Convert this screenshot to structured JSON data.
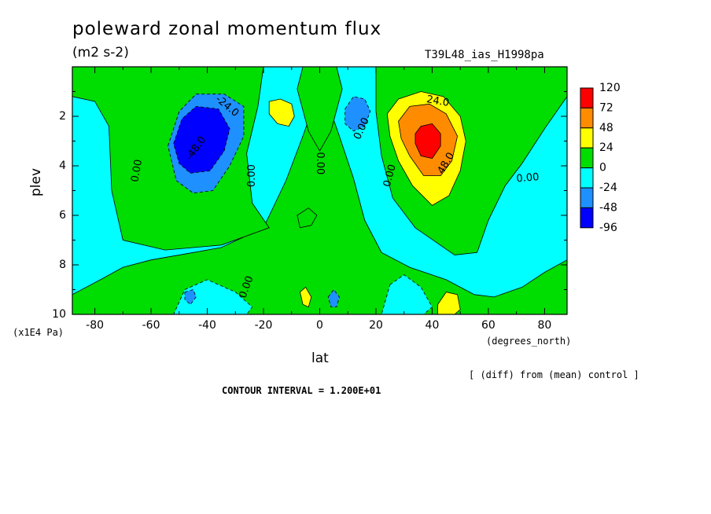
{
  "chart_data": {
    "type": "heatmap",
    "title": "poleward zonal momentum flux",
    "subtitle": "(m2 s-2)",
    "run_label": "T39L48_ias_H1998pa",
    "xlabel": "lat",
    "x_unit_label": "(degrees_north)",
    "ylabel": "plev",
    "y_unit_label": "(x1E4 Pa)",
    "footer_note": "[ (diff) from (mean) control ]",
    "contour_interval_text": "CONTOUR INTERVAL = 1.200E+01",
    "xlim": [
      -88,
      88
    ],
    "ylim": [
      10,
      0
    ],
    "x_ticks": [
      -80,
      -60,
      -40,
      -20,
      0,
      20,
      40,
      60,
      80
    ],
    "x_tick_labels": [
      "-80",
      "-60",
      "-40",
      "-20",
      "0",
      "20",
      "40",
      "60",
      "80"
    ],
    "y_ticks": [
      2,
      4,
      6,
      8,
      10
    ],
    "y_tick_labels": [
      "2",
      "4",
      "6",
      "8",
      "10"
    ],
    "legend": {
      "placement": "right",
      "labels": [
        "120",
        "72",
        "48",
        "24",
        "0",
        "-24",
        "-48",
        "-96"
      ],
      "colors": [
        "#ff0000",
        "#ff8c00",
        "#ffff00",
        "#00dd00",
        "#00ffff",
        "#1e90ff",
        "#0000ff"
      ]
    },
    "regions": [
      {
        "name": "green-lowlevel-tropics",
        "level": "0 to 24",
        "color": "#00dd00",
        "pts": [
          [
            -88,
            10
          ],
          [
            -88,
            9.2
          ],
          [
            -78,
            8.6
          ],
          [
            -70,
            8.1
          ],
          [
            -60,
            7.8
          ],
          [
            -45,
            7.5
          ],
          [
            -35,
            7.3
          ],
          [
            -20,
            6.5
          ],
          [
            -12,
            4.6
          ],
          [
            -6,
            2.8
          ],
          [
            -2,
            1.5
          ],
          [
            0,
            0.8
          ],
          [
            3,
            1.5
          ],
          [
            7,
            2.8
          ],
          [
            12,
            4.5
          ],
          [
            16,
            6.2
          ],
          [
            22,
            7.5
          ],
          [
            32,
            8.1
          ],
          [
            45,
            8.6
          ],
          [
            55,
            9.2
          ],
          [
            62,
            9.3
          ],
          [
            72,
            8.9
          ],
          [
            80,
            8.3
          ],
          [
            88,
            7.8
          ],
          [
            88,
            10
          ]
        ]
      },
      {
        "name": "green-upper-south",
        "level": "0 to 24",
        "color": "#00dd00",
        "pts": [
          [
            -88,
            0
          ],
          [
            -20,
            0
          ],
          [
            -22,
            1.6
          ],
          [
            -26,
            3.5
          ],
          [
            -24,
            5.5
          ],
          [
            -18,
            6.5
          ],
          [
            -35,
            7.2
          ],
          [
            -55,
            7.4
          ],
          [
            -70,
            7.0
          ],
          [
            -74,
            5.0
          ],
          [
            -75,
            2.4
          ],
          [
            -80,
            1.4
          ],
          [
            -88,
            1.2
          ]
        ]
      },
      {
        "name": "green-upper-north",
        "level": "0 to 24",
        "color": "#00dd00",
        "pts": [
          [
            20,
            0
          ],
          [
            88,
            0
          ],
          [
            88,
            1.2
          ],
          [
            80,
            2.5
          ],
          [
            72,
            3.9
          ],
          [
            66,
            4.8
          ],
          [
            60,
            6.2
          ],
          [
            56,
            7.5
          ],
          [
            48,
            7.6
          ],
          [
            34,
            6.5
          ],
          [
            26,
            5.3
          ],
          [
            22,
            3.6
          ],
          [
            20,
            1.8
          ]
        ]
      },
      {
        "name": "green-equator-upper",
        "level": "0 to 24",
        "color": "#00dd00",
        "pts": [
          [
            -6,
            0
          ],
          [
            6,
            0
          ],
          [
            8,
            0.9
          ],
          [
            4,
            2.6
          ],
          [
            0,
            3.4
          ],
          [
            -4,
            2.6
          ],
          [
            -8,
            0.9
          ]
        ]
      },
      {
        "name": "cyan-lower-south",
        "level": "-24 to 0",
        "color": "#00ffff",
        "pts": [
          [
            -48,
            9.0
          ],
          [
            -40,
            8.6
          ],
          [
            -30,
            9.1
          ],
          [
            -24,
            9.7
          ],
          [
            -26,
            10
          ],
          [
            -52,
            10
          ]
        ]
      },
      {
        "name": "cyan-lower-north",
        "level": "-24 to 0",
        "color": "#00ffff",
        "pts": [
          [
            25,
            8.8
          ],
          [
            30,
            8.4
          ],
          [
            36,
            8.9
          ],
          [
            40,
            9.7
          ],
          [
            37,
            10
          ],
          [
            22,
            10
          ]
        ]
      },
      {
        "name": "blue-upper-south",
        "level": "-48 to -24",
        "color": "#1e90ff",
        "pts": [
          [
            -54,
            3.2
          ],
          [
            -50,
            1.8
          ],
          [
            -44,
            1.1
          ],
          [
            -34,
            1.1
          ],
          [
            -27,
            1.6
          ],
          [
            -27,
            2.8
          ],
          [
            -32,
            4.0
          ],
          [
            -38,
            5.0
          ],
          [
            -45,
            5.1
          ],
          [
            -51,
            4.6
          ]
        ]
      },
      {
        "name": "darkblue-upper-south",
        "level": "-96 to -48",
        "color": "#0000ff",
        "pts": [
          [
            -52,
            3.1
          ],
          [
            -49,
            2.1
          ],
          [
            -44,
            1.6
          ],
          [
            -36,
            1.7
          ],
          [
            -32,
            2.5
          ],
          [
            -34,
            3.4
          ],
          [
            -39,
            4.2
          ],
          [
            -46,
            4.3
          ],
          [
            -50,
            3.9
          ]
        ]
      },
      {
        "name": "blue-upper-mid-north",
        "level": "-48 to -24",
        "color": "#1e90ff",
        "pts": [
          [
            9,
            1.7
          ],
          [
            12,
            1.2
          ],
          [
            16,
            1.3
          ],
          [
            18,
            1.8
          ],
          [
            16,
            2.4
          ],
          [
            12,
            2.6
          ],
          [
            9,
            2.3
          ]
        ]
      },
      {
        "name": "blue-lower-south",
        "level": "-48 to -24",
        "color": "#1e90ff",
        "pts": [
          [
            -48,
            9.1
          ],
          [
            -45,
            9.0
          ],
          [
            -44,
            9.3
          ],
          [
            -46,
            9.6
          ],
          [
            -48,
            9.4
          ]
        ]
      },
      {
        "name": "blue-lower-eq",
        "level": "-48 to -24",
        "color": "#1e90ff",
        "pts": [
          [
            3,
            9.3
          ],
          [
            5,
            9.0
          ],
          [
            7,
            9.3
          ],
          [
            6,
            9.7
          ],
          [
            4,
            9.7
          ]
        ]
      },
      {
        "name": "yellow-upper-north",
        "level": "24 to 48",
        "color": "#ffff00",
        "pts": [
          [
            24,
            1.9
          ],
          [
            28,
            1.3
          ],
          [
            36,
            1.0
          ],
          [
            44,
            1.2
          ],
          [
            50,
            2.0
          ],
          [
            52,
            3.0
          ],
          [
            50,
            4.2
          ],
          [
            46,
            5.2
          ],
          [
            40,
            5.6
          ],
          [
            33,
            4.8
          ],
          [
            28,
            3.8
          ],
          [
            25,
            2.8
          ]
        ]
      },
      {
        "name": "orange-upper-north",
        "level": "48 to 72",
        "color": "#ff8c00",
        "pts": [
          [
            28,
            2.2
          ],
          [
            32,
            1.6
          ],
          [
            39,
            1.5
          ],
          [
            45,
            1.9
          ],
          [
            49,
            2.8
          ],
          [
            47,
            3.8
          ],
          [
            43,
            4.4
          ],
          [
            37,
            4.4
          ],
          [
            32,
            3.6
          ],
          [
            29,
            2.9
          ]
        ]
      },
      {
        "name": "red-upper-north",
        "level": "72 to 120",
        "color": "#ff0000",
        "pts": [
          [
            34,
            2.7
          ],
          [
            36,
            2.4
          ],
          [
            40,
            2.3
          ],
          [
            43,
            2.7
          ],
          [
            43,
            3.2
          ],
          [
            40,
            3.7
          ],
          [
            36,
            3.6
          ],
          [
            34,
            3.1
          ]
        ]
      },
      {
        "name": "yellow-upper-south",
        "level": "24 to 48",
        "color": "#ffff00",
        "pts": [
          [
            -18,
            1.4
          ],
          [
            -14,
            1.3
          ],
          [
            -10,
            1.5
          ],
          [
            -9,
            2.0
          ],
          [
            -11,
            2.4
          ],
          [
            -15,
            2.3
          ],
          [
            -18,
            1.9
          ]
        ]
      },
      {
        "name": "yellow-lower-eq",
        "level": "24 to 48",
        "color": "#ffff00",
        "pts": [
          [
            -7,
            9.1
          ],
          [
            -5,
            8.9
          ],
          [
            -3,
            9.3
          ],
          [
            -4,
            9.7
          ],
          [
            -6,
            9.6
          ]
        ]
      },
      {
        "name": "yellow-lower-north",
        "level": "24 to 48",
        "color": "#ffff00",
        "pts": [
          [
            42,
            9.6
          ],
          [
            45,
            9.1
          ],
          [
            49,
            9.2
          ],
          [
            50,
            9.8
          ],
          [
            48,
            10
          ],
          [
            42,
            10
          ]
        ]
      },
      {
        "name": "green-small-south",
        "level": "0 to 24",
        "color": "#00dd00",
        "pts": [
          [
            -8,
            6.0
          ],
          [
            -4,
            5.7
          ],
          [
            -1,
            6.0
          ],
          [
            -3,
            6.4
          ],
          [
            -7,
            6.5
          ]
        ]
      }
    ],
    "contour_labels": [
      {
        "text": "-24.0",
        "x": -33,
        "y": 1.6,
        "angle": 40
      },
      {
        "text": "-48.0",
        "x": -44,
        "y": 3.3,
        "angle": -55
      },
      {
        "text": "0.00",
        "x": -65,
        "y": 4.2,
        "angle": -80
      },
      {
        "text": "0.00",
        "x": -24,
        "y": 4.4,
        "angle": -90
      },
      {
        "text": "0.00",
        "x": 0,
        "y": 3.9,
        "angle": 90
      },
      {
        "text": "0.00",
        "x": 15,
        "y": 2.5,
        "angle": -65
      },
      {
        "text": "0.00",
        "x": 25,
        "y": 4.4,
        "angle": -75
      },
      {
        "text": "24.0",
        "x": 42,
        "y": 1.4,
        "angle": 10
      },
      {
        "text": "48.0",
        "x": 45,
        "y": 3.9,
        "angle": -60
      },
      {
        "text": "0.00",
        "x": 74,
        "y": 4.5,
        "angle": -5
      },
      {
        "text": "0.00",
        "x": -26,
        "y": 8.9,
        "angle": -70
      }
    ]
  }
}
